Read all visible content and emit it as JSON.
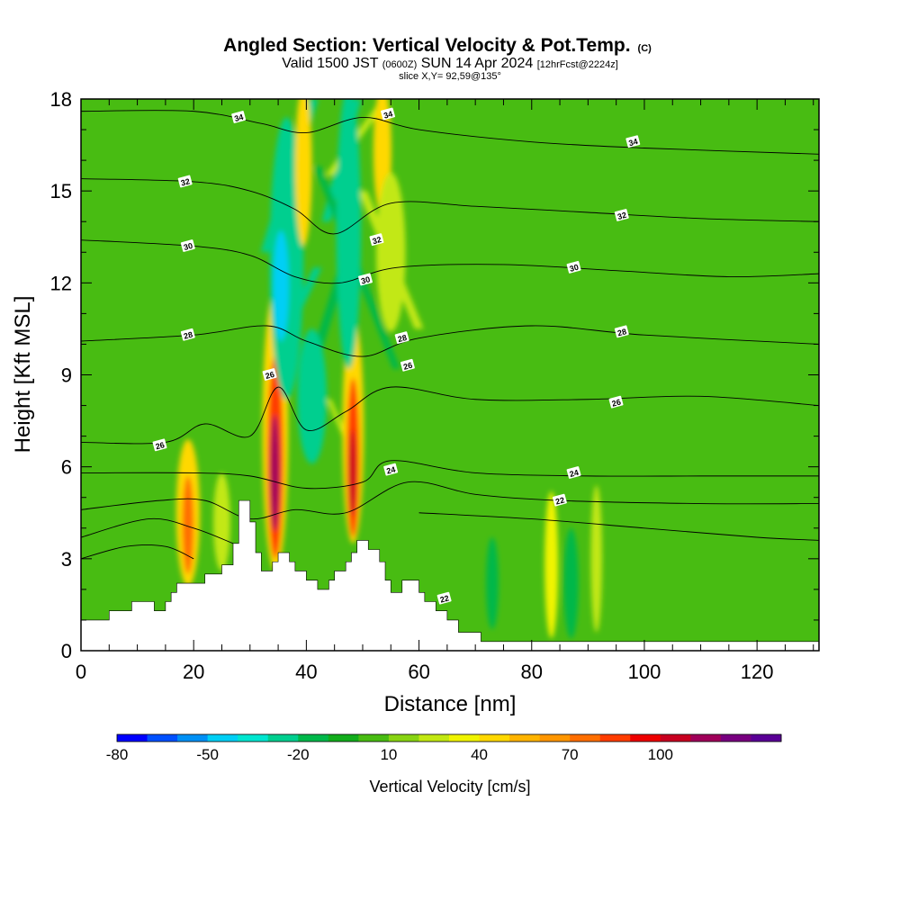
{
  "chart_data": {
    "type": "heatmap",
    "title": "Angled Section: Vertical Velocity & Pot.Temp.",
    "title_suffix": "(C)",
    "subtitle_parts": {
      "prefix": "Valid 1500 JST",
      "utc": "(0600Z)",
      "date": "SUN 14 Apr 2024",
      "forecast": "[12hrFcst@2224z]"
    },
    "slice_info": "slice X,Y= 92,59@135°",
    "xlabel": "Distance [nm]",
    "ylabel": "Height [Kft MSL]",
    "xlim": [
      0,
      131
    ],
    "ylim": [
      0,
      18
    ],
    "x_ticks": [
      "0",
      "20",
      "40",
      "60",
      "80",
      "100",
      "120"
    ],
    "x_tick_values": [
      0,
      20,
      40,
      60,
      80,
      100,
      120
    ],
    "y_ticks": [
      "0",
      "3",
      "6",
      "9",
      "12",
      "15",
      "18"
    ],
    "y_tick_values": [
      0,
      3,
      6,
      9,
      12,
      15,
      18
    ],
    "background_value": 0,
    "terrain": [
      [
        0,
        1.0
      ],
      [
        5,
        1.0
      ],
      [
        5,
        1.3
      ],
      [
        9,
        1.3
      ],
      [
        9,
        1.6
      ],
      [
        13,
        1.6
      ],
      [
        13,
        1.3
      ],
      [
        15,
        1.3
      ],
      [
        15,
        1.6
      ],
      [
        16,
        1.6
      ],
      [
        16,
        1.9
      ],
      [
        17,
        1.9
      ],
      [
        17,
        2.2
      ],
      [
        22,
        2.2
      ],
      [
        22,
        2.5
      ],
      [
        25,
        2.5
      ],
      [
        25,
        2.8
      ],
      [
        27,
        2.8
      ],
      [
        27,
        3.5
      ],
      [
        28,
        3.5
      ],
      [
        28,
        4.9
      ],
      [
        30,
        4.9
      ],
      [
        30,
        4.2
      ],
      [
        31,
        4.2
      ],
      [
        31,
        3.2
      ],
      [
        32,
        3.2
      ],
      [
        32,
        2.6
      ],
      [
        34,
        2.6
      ],
      [
        34,
        2.9
      ],
      [
        35,
        2.9
      ],
      [
        35,
        3.2
      ],
      [
        37,
        3.2
      ],
      [
        37,
        2.9
      ],
      [
        38,
        2.9
      ],
      [
        38,
        2.6
      ],
      [
        40,
        2.6
      ],
      [
        40,
        2.3
      ],
      [
        42,
        2.3
      ],
      [
        42,
        2.0
      ],
      [
        44,
        2.0
      ],
      [
        44,
        2.3
      ],
      [
        45,
        2.3
      ],
      [
        45,
        2.6
      ],
      [
        47,
        2.6
      ],
      [
        47,
        2.9
      ],
      [
        48,
        2.9
      ],
      [
        48,
        3.2
      ],
      [
        49,
        3.2
      ],
      [
        49,
        3.6
      ],
      [
        51,
        3.6
      ],
      [
        51,
        3.3
      ],
      [
        53,
        3.3
      ],
      [
        53,
        2.9
      ],
      [
        54,
        2.9
      ],
      [
        54,
        2.3
      ],
      [
        55,
        2.3
      ],
      [
        55,
        1.9
      ],
      [
        57,
        1.9
      ],
      [
        57,
        2.3
      ],
      [
        60,
        2.3
      ],
      [
        60,
        1.9
      ],
      [
        61,
        1.9
      ],
      [
        61,
        1.6
      ],
      [
        63,
        1.6
      ],
      [
        63,
        1.3
      ],
      [
        65,
        1.3
      ],
      [
        65,
        1.0
      ],
      [
        67,
        1.0
      ],
      [
        67,
        0.6
      ],
      [
        71,
        0.6
      ],
      [
        71,
        0.3
      ],
      [
        131,
        0.3
      ],
      [
        131,
        0
      ]
    ],
    "blobs": [
      {
        "x": 34.5,
        "y": 7.2,
        "rx": 2.3,
        "ry": 4.6,
        "v": 40
      },
      {
        "x": 34.5,
        "y": 6.3,
        "rx": 1.4,
        "ry": 3.3,
        "v": 80
      },
      {
        "x": 34.4,
        "y": 5.8,
        "rx": 0.8,
        "ry": 1.9,
        "v": 110
      },
      {
        "x": 48.3,
        "y": 7.2,
        "rx": 1.9,
        "ry": 3.7,
        "v": 40
      },
      {
        "x": 48.3,
        "y": 6.3,
        "rx": 1.1,
        "ry": 2.6,
        "v": 80
      },
      {
        "x": 48.2,
        "y": 5.8,
        "rx": 0.6,
        "ry": 1.4,
        "v": 105
      },
      {
        "x": 19,
        "y": 4.5,
        "rx": 2.1,
        "ry": 2.4,
        "v": 40
      },
      {
        "x": 19,
        "y": 4.1,
        "rx": 1.0,
        "ry": 1.6,
        "v": 70
      },
      {
        "x": 25,
        "y": 4.2,
        "rx": 1.5,
        "ry": 1.6,
        "v": 20
      },
      {
        "x": 36.5,
        "y": 12.8,
        "rx": 3.0,
        "ry": 4.6,
        "v": -30
      },
      {
        "x": 35.5,
        "y": 11.9,
        "rx": 1.4,
        "ry": 1.8,
        "v": -45
      },
      {
        "x": 47.5,
        "y": 13.8,
        "rx": 2.2,
        "ry": 4.6,
        "v": -30
      },
      {
        "x": 41,
        "y": 8.3,
        "rx": 2.6,
        "ry": 2.2,
        "v": -25
      },
      {
        "x": 39.5,
        "y": 15.8,
        "rx": 1.5,
        "ry": 2.6,
        "v": 40
      },
      {
        "x": 53.5,
        "y": 16.3,
        "rx": 1.6,
        "ry": 2.1,
        "v": 40
      },
      {
        "x": 55,
        "y": 13.0,
        "rx": 2.6,
        "ry": 2.6,
        "v": 20
      },
      {
        "x": 83.5,
        "y": 2.8,
        "rx": 1.2,
        "ry": 2.4,
        "v": 35
      },
      {
        "x": 91.5,
        "y": 3.0,
        "rx": 1.0,
        "ry": 2.4,
        "v": 25
      },
      {
        "x": 73,
        "y": 2.2,
        "rx": 1.1,
        "ry": 1.5,
        "v": -20
      },
      {
        "x": 87,
        "y": 2.2,
        "rx": 1.3,
        "ry": 1.8,
        "v": -20
      }
    ],
    "streaks": [
      {
        "x0": 33,
        "x1": 41,
        "y0": 13.0,
        "y1": 18.0,
        "w": 2.2,
        "v": -30
      },
      {
        "x0": 41.5,
        "x1": 49,
        "y0": 9.5,
        "y1": 14.0,
        "w": 1.6,
        "v": -20
      },
      {
        "x0": 43.5,
        "x1": 49,
        "y0": 14.0,
        "y1": 18.0,
        "w": 1.5,
        "v": -30
      },
      {
        "x0": 35,
        "x1": 42,
        "y0": 9.8,
        "y1": 12.5,
        "w": 1.5,
        "v": -30
      },
      {
        "x0": 42,
        "x1": 56,
        "y0": 15.8,
        "y1": 9.2,
        "w": 1.3,
        "v": -20
      },
      {
        "x0": 44,
        "x1": 54,
        "y0": 15.5,
        "y1": 18.0,
        "w": 1.4,
        "v": 25
      },
      {
        "x0": 50,
        "x1": 60,
        "y0": 15.0,
        "y1": 10.5,
        "w": 1.6,
        "v": 20
      },
      {
        "x0": 44,
        "x1": 48,
        "y0": 8.2,
        "y1": 6.5,
        "w": 0.9,
        "v": 20
      }
    ],
    "isentropes": [
      {
        "label": "34",
        "points": [
          [
            0,
            17.6
          ],
          [
            20,
            17.6
          ],
          [
            32,
            17.2
          ],
          [
            40,
            16.9
          ],
          [
            50,
            17.4
          ],
          [
            60,
            17.0
          ],
          [
            80,
            16.6
          ],
          [
            100,
            16.4
          ],
          [
            131,
            16.2
          ]
        ]
      },
      {
        "label": "32",
        "points": [
          [
            0,
            15.4
          ],
          [
            20,
            15.3
          ],
          [
            30,
            15.0
          ],
          [
            38,
            14.4
          ],
          [
            45,
            13.6
          ],
          [
            55,
            14.6
          ],
          [
            70,
            14.5
          ],
          [
            90,
            14.3
          ],
          [
            110,
            14.1
          ],
          [
            131,
            14.0
          ]
        ]
      },
      {
        "label": "30",
        "points": [
          [
            0,
            13.4
          ],
          [
            20,
            13.2
          ],
          [
            30,
            12.9
          ],
          [
            38,
            12.2
          ],
          [
            46,
            12.0
          ],
          [
            56,
            12.5
          ],
          [
            75,
            12.6
          ],
          [
            95,
            12.4
          ],
          [
            115,
            12.2
          ],
          [
            131,
            12.3
          ]
        ]
      },
      {
        "label": "28",
        "points": [
          [
            0,
            10.1
          ],
          [
            20,
            10.3
          ],
          [
            33,
            10.6
          ],
          [
            40,
            10.1
          ],
          [
            50,
            9.6
          ],
          [
            60,
            10.2
          ],
          [
            80,
            10.6
          ],
          [
            100,
            10.3
          ],
          [
            131,
            10.0
          ]
        ]
      },
      {
        "label": "26",
        "points": [
          [
            0,
            6.8
          ],
          [
            15,
            6.8
          ],
          [
            22,
            7.4
          ],
          [
            30,
            7.0
          ],
          [
            35,
            8.6
          ],
          [
            40,
            7.2
          ],
          [
            47,
            7.8
          ],
          [
            55,
            8.6
          ],
          [
            70,
            8.2
          ],
          [
            90,
            8.2
          ],
          [
            110,
            8.3
          ],
          [
            131,
            8.0
          ]
        ]
      },
      {
        "label": "24",
        "points": [
          [
            0,
            5.8
          ],
          [
            20,
            5.8
          ],
          [
            30,
            5.7
          ],
          [
            40,
            5.3
          ],
          [
            50,
            5.5
          ],
          [
            55,
            6.2
          ],
          [
            70,
            5.8
          ],
          [
            90,
            5.7
          ],
          [
            110,
            5.7
          ],
          [
            131,
            5.7
          ]
        ]
      },
      {
        "label": "22",
        "points": [
          [
            0,
            4.6
          ],
          [
            14,
            4.9
          ],
          [
            22,
            4.9
          ],
          [
            30,
            4.3
          ],
          [
            38,
            4.6
          ],
          [
            47,
            4.5
          ],
          [
            58,
            5.5
          ],
          [
            70,
            5.1
          ],
          [
            85,
            4.9
          ],
          [
            110,
            4.8
          ],
          [
            131,
            4.8
          ]
        ]
      },
      {
        "label": "",
        "points": [
          [
            0,
            3.7
          ],
          [
            12,
            4.3
          ],
          [
            20,
            4.0
          ],
          [
            27,
            3.5
          ]
        ]
      },
      {
        "label": "",
        "points": [
          [
            60,
            4.5
          ],
          [
            80,
            4.3
          ],
          [
            100,
            4.0
          ],
          [
            120,
            3.7
          ],
          [
            131,
            3.6
          ]
        ]
      },
      {
        "label": "",
        "points": [
          [
            0,
            3.0
          ],
          [
            8,
            3.4
          ],
          [
            15,
            3.4
          ],
          [
            20,
            3.0
          ]
        ]
      }
    ],
    "contour_labels": [
      {
        "text": "34",
        "x": 28,
        "y": 17.4
      },
      {
        "text": "34",
        "x": 54.5,
        "y": 17.5
      },
      {
        "text": "34",
        "x": 98,
        "y": 16.6
      },
      {
        "text": "32",
        "x": 18.5,
        "y": 15.3
      },
      {
        "text": "32",
        "x": 96,
        "y": 14.2
      },
      {
        "text": "32",
        "x": 52.5,
        "y": 13.4
      },
      {
        "text": "30",
        "x": 19,
        "y": 13.2
      },
      {
        "text": "30",
        "x": 50.5,
        "y": 12.1
      },
      {
        "text": "30",
        "x": 87.5,
        "y": 12.5
      },
      {
        "text": "28",
        "x": 19,
        "y": 10.3
      },
      {
        "text": "28",
        "x": 57,
        "y": 10.2
      },
      {
        "text": "28",
        "x": 96,
        "y": 10.4
      },
      {
        "text": "26",
        "x": 33.5,
        "y": 9.0
      },
      {
        "text": "26",
        "x": 58,
        "y": 9.3
      },
      {
        "text": "26",
        "x": 95,
        "y": 8.1
      },
      {
        "text": "26",
        "x": 14,
        "y": 6.7
      },
      {
        "text": "24",
        "x": 55,
        "y": 5.9
      },
      {
        "text": "24",
        "x": 87.5,
        "y": 5.8
      },
      {
        "text": "22",
        "x": 85,
        "y": 4.9
      },
      {
        "text": "22",
        "x": 64.5,
        "y": 1.7
      }
    ],
    "colorbar": {
      "title": "Vertical Velocity [cm/s]",
      "min": -80,
      "step": 10,
      "colors": [
        "#0000ff",
        "#0050ff",
        "#0090f5",
        "#00cff5",
        "#00e6d0",
        "#00cf8f",
        "#00b84a",
        "#12ad1c",
        "#48bc12",
        "#88d412",
        "#c2e812",
        "#f0f400",
        "#ffd800",
        "#ffb400",
        "#ff9600",
        "#ff6e00",
        "#ff3c00",
        "#ee0000",
        "#c80020",
        "#a0005a",
        "#780080",
        "#5a0096"
      ],
      "tick_labels": [
        "-80",
        "-50",
        "-20",
        "10",
        "40",
        "70",
        "100"
      ],
      "tick_values": [
        -80,
        -50,
        -20,
        10,
        40,
        70,
        100
      ]
    }
  }
}
